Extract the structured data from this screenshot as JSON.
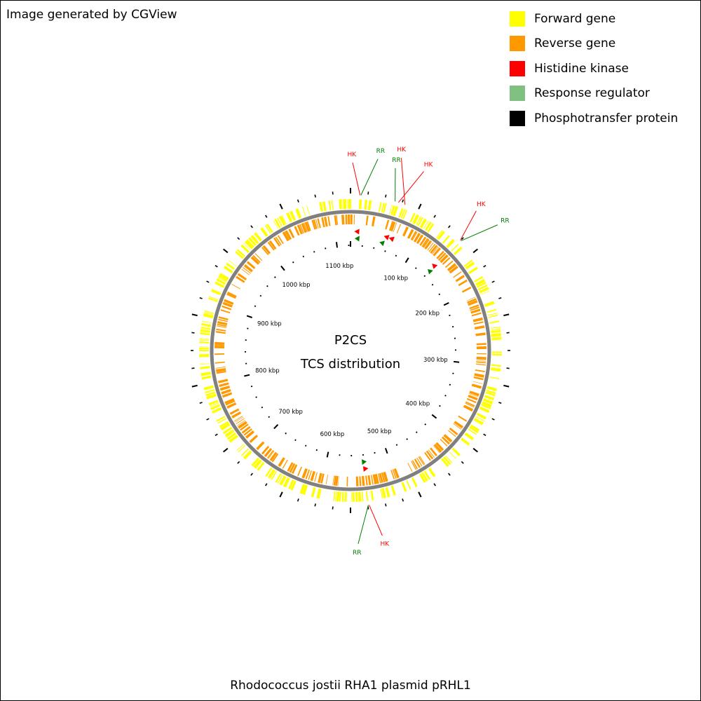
{
  "credit": "Image generated by CGView",
  "legend": [
    {
      "label": "Forward gene",
      "color": "#ffff00"
    },
    {
      "label": "Reverse gene",
      "color": "#ff9900"
    },
    {
      "label": "Histidine kinase",
      "color": "#ff0000"
    },
    {
      "label": "Response regulator",
      "color": "#80c080"
    },
    {
      "label": "Phosphotransfer protein",
      "color": "#000000"
    }
  ],
  "center": {
    "line1": "P2CS",
    "line2": "TCS distribution"
  },
  "caption": "Rhodococcus jostii RHA1 plasmid pRHL1",
  "map": {
    "length_kbp": 1123,
    "ruler_labels": [
      "100 kbp",
      "200 kbp",
      "300 kbp",
      "400 kbp",
      "500 kbp",
      "600 kbp",
      "700 kbp",
      "800 kbp",
      "900 kbp",
      "1000 kbp",
      "1100 kbp"
    ],
    "colors": {
      "forward": "#ffff00",
      "reverse": "#ff9900",
      "backbone": "#808080",
      "hk": "#ff0000",
      "rr": "#008000"
    },
    "tcs_features": [
      {
        "label": "HK",
        "type": "hk",
        "kbp": 11
      },
      {
        "label": "RR",
        "type": "rr",
        "kbp": 12
      },
      {
        "label": "RR",
        "type": "rr",
        "kbp": 52
      },
      {
        "label": "HK",
        "type": "hk",
        "kbp": 56
      },
      {
        "label": "HK",
        "type": "hk",
        "kbp": 64
      },
      {
        "label": "HK",
        "type": "hk",
        "kbp": 140
      },
      {
        "label": "RR",
        "type": "rr",
        "kbp": 141
      },
      {
        "label": "HK",
        "type": "hk",
        "kbp": 540
      },
      {
        "label": "RR",
        "type": "rr",
        "kbp": 541
      }
    ]
  }
}
